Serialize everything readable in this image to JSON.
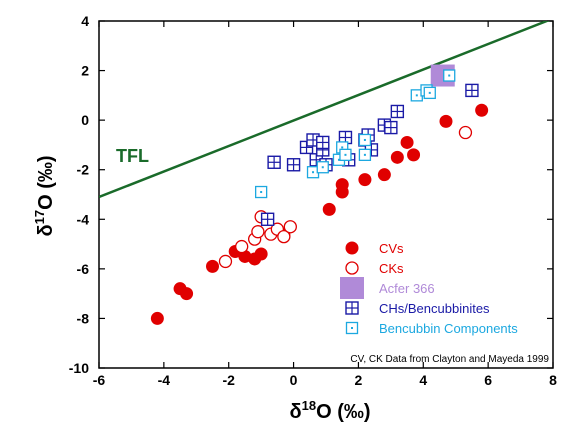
{
  "chart_data": {
    "type": "scatter",
    "xlabel": "δ18O (‰)",
    "xlabel_parts": {
      "symbol": "δ",
      "superscript": "18",
      "rest": "O (‰)"
    },
    "ylabel": "δ17O (‰)",
    "ylabel_parts": {
      "symbol": "δ",
      "superscript": "17",
      "rest": "O (‰)"
    },
    "xlim": [
      -6,
      8
    ],
    "ylim": [
      -10,
      4
    ],
    "xticks": [
      -6,
      -4,
      -2,
      0,
      2,
      4,
      6,
      8
    ],
    "yticks": [
      -10,
      -8,
      -6,
      -4,
      -2,
      0,
      2,
      4
    ],
    "grid": false,
    "legend_position": "bottom-right",
    "reference_line": {
      "label": "TFL",
      "color": "#1a6b2a",
      "points": [
        [
          -6,
          -3.1
        ],
        [
          8,
          4.1
        ]
      ]
    },
    "annotation": "CV, CK Data from Clayton and Mayeda 1999",
    "series": [
      {
        "name": "CVs",
        "marker": "filled-circle",
        "color": "#e00000",
        "points": [
          [
            -4.2,
            -8.0
          ],
          [
            -3.5,
            -6.8
          ],
          [
            -3.3,
            -7.0
          ],
          [
            -2.5,
            -5.9
          ],
          [
            -1.8,
            -5.3
          ],
          [
            -1.5,
            -5.5
          ],
          [
            -1.2,
            -5.6
          ],
          [
            -1.0,
            -5.4
          ],
          [
            -0.3,
            -4.6
          ],
          [
            1.1,
            -3.6
          ],
          [
            1.5,
            -2.9
          ],
          [
            1.5,
            -2.6
          ],
          [
            2.2,
            -2.4
          ],
          [
            2.8,
            -2.2
          ],
          [
            3.2,
            -1.5
          ],
          [
            3.5,
            -0.9
          ],
          [
            3.7,
            -1.4
          ],
          [
            4.7,
            -0.05
          ],
          [
            5.8,
            0.4
          ]
        ]
      },
      {
        "name": "CKs",
        "marker": "open-circle",
        "color": "#e00000",
        "points": [
          [
            -2.1,
            -5.7
          ],
          [
            -1.6,
            -5.1
          ],
          [
            -1.2,
            -4.8
          ],
          [
            -1.1,
            -4.5
          ],
          [
            -1.0,
            -3.9
          ],
          [
            -0.7,
            -4.6
          ],
          [
            -0.5,
            -4.4
          ],
          [
            -0.3,
            -4.7
          ],
          [
            -0.1,
            -4.3
          ],
          [
            5.3,
            -0.5
          ]
        ]
      },
      {
        "name": "Acfer 366",
        "marker": "filled-square",
        "color": "#b08ad8",
        "points": [
          [
            4.6,
            1.8
          ]
        ]
      },
      {
        "name": "CHs/Bencubbinites",
        "marker": "open-square-plus",
        "color": "#1a1aa6",
        "points": [
          [
            -0.8,
            -4.0
          ],
          [
            -0.6,
            -1.7
          ],
          [
            0.0,
            -1.8
          ],
          [
            0.4,
            -1.1
          ],
          [
            0.6,
            -0.8
          ],
          [
            0.7,
            -1.6
          ],
          [
            0.9,
            -1.2
          ],
          [
            0.9,
            -0.9
          ],
          [
            1.0,
            -1.8
          ],
          [
            1.6,
            -0.7
          ],
          [
            1.7,
            -1.6
          ],
          [
            2.2,
            -0.8
          ],
          [
            2.3,
            -0.6
          ],
          [
            2.4,
            -1.2
          ],
          [
            2.8,
            -0.2
          ],
          [
            3.0,
            -0.3
          ],
          [
            3.2,
            0.35
          ],
          [
            5.5,
            1.2
          ]
        ]
      },
      {
        "name": "Bencubbin Components",
        "marker": "open-square-dot",
        "color": "#1ca8e0",
        "points": [
          [
            -1.0,
            -2.9
          ],
          [
            0.6,
            -2.1
          ],
          [
            0.9,
            -1.9
          ],
          [
            1.4,
            -1.6
          ],
          [
            1.5,
            -1.1
          ],
          [
            1.6,
            -1.4
          ],
          [
            2.2,
            -0.8
          ],
          [
            2.2,
            -1.4
          ],
          [
            3.8,
            1.0
          ],
          [
            4.1,
            1.2
          ],
          [
            4.2,
            1.1
          ],
          [
            4.8,
            1.8
          ]
        ]
      }
    ]
  }
}
